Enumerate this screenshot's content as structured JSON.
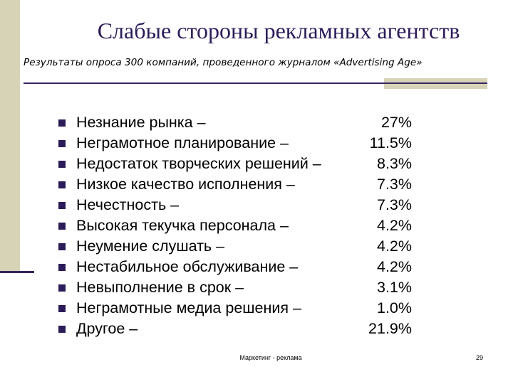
{
  "slide": {
    "title": "Слабые стороны рекламных агентств",
    "subtitle": "Результаты опроса 300 компаний, проведенного журналом «Advertising Age»",
    "items": [
      {
        "label": "Незнание рынка –",
        "value": "27%"
      },
      {
        "label": "Неграмотное планирование –",
        "value": "11.5%"
      },
      {
        "label": "Недостаток творческих решений –",
        "value": "8.3%"
      },
      {
        "label": "Низкое качество исполнения –",
        "value": "7.3%"
      },
      {
        "label": "Нечестность –",
        "value": "7.3%"
      },
      {
        "label": "Высокая текучка персонала –",
        "value": "4.2%"
      },
      {
        "label": "Неумение слушать –",
        "value": "4.2%"
      },
      {
        "label": "Нестабильное обслуживание –",
        "value": "4.2%"
      },
      {
        "label": "Невыполнение в срок –",
        "value": "3.1%"
      },
      {
        "label": "Неграмотные медиа решения –",
        "value": "1.0%"
      },
      {
        "label": "Другое –",
        "value": "21.9%"
      }
    ]
  },
  "footer": {
    "text": "Маркетинг - реклама",
    "page_number": "29"
  },
  "colors": {
    "accent_dark": "#2c1b59",
    "accent_beige": "#d6d3b7",
    "rule": "#37245e"
  }
}
